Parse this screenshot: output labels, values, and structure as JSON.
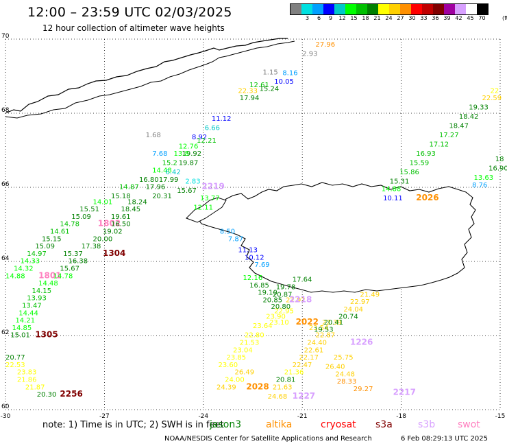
{
  "header": {
    "title": "12:00 – 23:59 UTC 02/03/2025",
    "subtitle": "12 hour collection of altimeter wave heights"
  },
  "legend": {
    "unit": "(ft)",
    "items": [
      {
        "label": "",
        "color": "#808080"
      },
      {
        "label": "3",
        "color": "#00e0e0"
      },
      {
        "label": "6",
        "color": "#00a0ff"
      },
      {
        "label": "9",
        "color": "#0000ff"
      },
      {
        "label": "12",
        "color": "#00c8c8"
      },
      {
        "label": "15",
        "color": "#00ff00"
      },
      {
        "label": "18",
        "color": "#00c000"
      },
      {
        "label": "21",
        "color": "#008000"
      },
      {
        "label": "24",
        "color": "#ffff00"
      },
      {
        "label": "27",
        "color": "#ffd000"
      },
      {
        "label": "30",
        "color": "#ff9000"
      },
      {
        "label": "33",
        "color": "#ff0000"
      },
      {
        "label": "36",
        "color": "#c00000"
      },
      {
        "label": "39",
        "color": "#800000"
      },
      {
        "label": "42",
        "color": "#a000a0"
      },
      {
        "label": "45",
        "color": "#d8a0ff"
      },
      {
        "label": "70",
        "color": "#ffffff"
      },
      {
        "label": "",
        "color": "#000000"
      }
    ]
  },
  "map": {
    "lon_ticks": [
      "-30",
      "-27",
      "-24",
      "-21",
      "-18",
      "-15"
    ],
    "lat_ticks": [
      "70",
      "68",
      "66",
      "64",
      "62",
      "60"
    ],
    "obs": [
      {
        "t": "27.96",
        "c": "#ff9000",
        "lon": -20.6,
        "lat": 69.8
      },
      {
        "t": "2.93",
        "c": "#808080",
        "lon": -21.0,
        "lat": 69.55
      },
      {
        "t": "1.15",
        "c": "#808080",
        "lon": -22.2,
        "lat": 69.05
      },
      {
        "t": "8.16",
        "c": "#00a0ff",
        "lon": -21.6,
        "lat": 69.03
      },
      {
        "t": "10.05",
        "c": "#0000ff",
        "lon": -21.85,
        "lat": 68.8
      },
      {
        "t": "12.61",
        "c": "#00c000",
        "lon": -22.6,
        "lat": 68.7
      },
      {
        "t": "15.24",
        "c": "#008000",
        "lon": -22.3,
        "lat": 68.6
      },
      {
        "t": "22.33",
        "c": "#ffd000",
        "lon": -22.95,
        "lat": 68.55
      },
      {
        "t": "17.94",
        "c": "#008000",
        "lon": -22.9,
        "lat": 68.35
      },
      {
        "t": "11.12",
        "c": "#0000ff",
        "lon": -23.75,
        "lat": 67.8
      },
      {
        "t": "6.66",
        "c": "#00c8c8",
        "lon": -23.96,
        "lat": 67.55
      },
      {
        "t": "1.68",
        "c": "#808080",
        "lon": -25.75,
        "lat": 67.35
      },
      {
        "t": "8.92",
        "c": "#0000ff",
        "lon": -24.35,
        "lat": 67.3
      },
      {
        "t": "12.21",
        "c": "#00c000",
        "lon": -24.2,
        "lat": 67.2
      },
      {
        "t": "12.76",
        "c": "#00ff00",
        "lon": -24.75,
        "lat": 67.05
      },
      {
        "t": "19.92",
        "c": "#008000",
        "lon": -24.65,
        "lat": 66.85
      },
      {
        "t": "7.68",
        "c": "#00a0ff",
        "lon": -25.55,
        "lat": 66.85
      },
      {
        "t": "13.8",
        "c": "#00ff00",
        "lon": -24.9,
        "lat": 66.85
      },
      {
        "t": "15.2",
        "c": "#00c000",
        "lon": -25.25,
        "lat": 66.6
      },
      {
        "t": "19.87",
        "c": "#008000",
        "lon": -24.75,
        "lat": 66.6
      },
      {
        "t": "14.48",
        "c": "#00ff00",
        "lon": -25.55,
        "lat": 66.4
      },
      {
        "t": "6.42",
        "c": "#00c8c8",
        "lon": -25.15,
        "lat": 66.35
      },
      {
        "t": "16.80",
        "c": "#008000",
        "lon": -25.95,
        "lat": 66.15
      },
      {
        "t": "17.99",
        "c": "#008000",
        "lon": -25.35,
        "lat": 66.15
      },
      {
        "t": "2.83",
        "c": "#00e0e0",
        "lon": -24.55,
        "lat": 66.1
      },
      {
        "t": "14.87",
        "c": "#00c000",
        "lon": -26.55,
        "lat": 65.95
      },
      {
        "t": "17.96",
        "c": "#008000",
        "lon": -25.75,
        "lat": 65.95
      },
      {
        "t": "15.18",
        "c": "#008000",
        "lon": -26.8,
        "lat": 65.7
      },
      {
        "t": "20.31",
        "c": "#008000",
        "lon": -25.55,
        "lat": 65.7
      },
      {
        "t": "15.67",
        "c": "#008000",
        "lon": -24.8,
        "lat": 65.85
      },
      {
        "t": "2219",
        "c": "#d8a0ff",
        "lon": -24.05,
        "lat": 65.95
      },
      {
        "t": "13.77",
        "c": "#00ff00",
        "lon": -24.1,
        "lat": 65.65
      },
      {
        "t": "14.01",
        "c": "#00ff00",
        "lon": -27.35,
        "lat": 65.55
      },
      {
        "t": "18.24",
        "c": "#008000",
        "lon": -26.3,
        "lat": 65.55
      },
      {
        "t": "12.11",
        "c": "#00ff00",
        "lon": -24.3,
        "lat": 65.4
      },
      {
        "t": "15.51",
        "c": "#008000",
        "lon": -27.75,
        "lat": 65.35
      },
      {
        "t": "18.45",
        "c": "#008000",
        "lon": -26.5,
        "lat": 65.35
      },
      {
        "t": "15.09",
        "c": "#008000",
        "lon": -28.0,
        "lat": 65.15
      },
      {
        "t": "19.61",
        "c": "#008000",
        "lon": -26.8,
        "lat": 65.15
      },
      {
        "t": "14.78",
        "c": "#00c000",
        "lon": -28.35,
        "lat": 64.95
      },
      {
        "t": "1802",
        "c": "#ff80c0",
        "lon": -27.2,
        "lat": 64.95
      },
      {
        "t": "16.50",
        "c": "#008000",
        "lon": -26.8,
        "lat": 64.95
      },
      {
        "t": "14.61",
        "c": "#00c000",
        "lon": -28.65,
        "lat": 64.75
      },
      {
        "t": "19.02",
        "c": "#008000",
        "lon": -27.05,
        "lat": 64.75
      },
      {
        "t": "15.15",
        "c": "#008000",
        "lon": -28.9,
        "lat": 64.55
      },
      {
        "t": "20.00",
        "c": "#008000",
        "lon": -27.35,
        "lat": 64.55
      },
      {
        "t": "8.50",
        "c": "#00a0ff",
        "lon": -23.5,
        "lat": 64.75
      },
      {
        "t": "15.09",
        "c": "#008000",
        "lon": -29.1,
        "lat": 64.35
      },
      {
        "t": "17.38",
        "c": "#008000",
        "lon": -27.7,
        "lat": 64.35
      },
      {
        "t": "7.87",
        "c": "#00a0ff",
        "lon": -23.25,
        "lat": 64.55
      },
      {
        "t": "14.97",
        "c": "#00c000",
        "lon": -29.35,
        "lat": 64.15
      },
      {
        "t": "15.37",
        "c": "#008000",
        "lon": -28.25,
        "lat": 64.15
      },
      {
        "t": "1304",
        "c": "#800000",
        "lon": -27.05,
        "lat": 64.15
      },
      {
        "t": "11.13",
        "c": "#0000ff",
        "lon": -22.95,
        "lat": 64.25
      },
      {
        "t": "14.33",
        "c": "#00ff00",
        "lon": -29.55,
        "lat": 63.95
      },
      {
        "t": "16.38",
        "c": "#008000",
        "lon": -28.1,
        "lat": 63.95
      },
      {
        "t": "10.12",
        "c": "#0000ff",
        "lon": -22.75,
        "lat": 64.05
      },
      {
        "t": "14.32",
        "c": "#00ff00",
        "lon": -29.75,
        "lat": 63.75
      },
      {
        "t": "15.67",
        "c": "#008000",
        "lon": -28.35,
        "lat": 63.75
      },
      {
        "t": "7.69",
        "c": "#00a0ff",
        "lon": -22.45,
        "lat": 63.85
      },
      {
        "t": "14.88",
        "c": "#00ff00",
        "lon": -30.0,
        "lat": 63.55
      },
      {
        "t": "1801",
        "c": "#ff80c0",
        "lon": -29.0,
        "lat": 63.55
      },
      {
        "t": "14.78",
        "c": "#00ff00",
        "lon": -28.55,
        "lat": 63.55
      },
      {
        "t": "12.16",
        "c": "#00ff00",
        "lon": -22.8,
        "lat": 63.5
      },
      {
        "t": "17.64",
        "c": "#008000",
        "lon": -21.3,
        "lat": 63.45
      },
      {
        "t": "14.48",
        "c": "#00ff00",
        "lon": -29.0,
        "lat": 63.35
      },
      {
        "t": "16.85",
        "c": "#008000",
        "lon": -22.6,
        "lat": 63.3
      },
      {
        "t": "19.78",
        "c": "#008000",
        "lon": -21.8,
        "lat": 63.25
      },
      {
        "t": "14.15",
        "c": "#00c000",
        "lon": -29.2,
        "lat": 63.15
      },
      {
        "t": "19.10",
        "c": "#008000",
        "lon": -22.35,
        "lat": 63.1
      },
      {
        "t": "20.87",
        "c": "#008000",
        "lon": -21.9,
        "lat": 63.05
      },
      {
        "t": "21.49",
        "c": "#ffd000",
        "lon": -19.25,
        "lat": 63.05
      },
      {
        "t": "13.93",
        "c": "#00c000",
        "lon": -29.35,
        "lat": 62.95
      },
      {
        "t": "20.85",
        "c": "#008000",
        "lon": -22.2,
        "lat": 62.9
      },
      {
        "t": "22.92",
        "c": "#ffd000",
        "lon": -21.5,
        "lat": 62.9
      },
      {
        "t": "2218",
        "c": "#d8a0ff",
        "lon": -21.4,
        "lat": 62.9
      },
      {
        "t": "22.97",
        "c": "#ffd000",
        "lon": -19.55,
        "lat": 62.85
      },
      {
        "t": "13.47",
        "c": "#00c000",
        "lon": -29.5,
        "lat": 62.75
      },
      {
        "t": "20.80",
        "c": "#008000",
        "lon": -21.95,
        "lat": 62.72
      },
      {
        "t": "24.04",
        "c": "#ffd000",
        "lon": -19.75,
        "lat": 62.65
      },
      {
        "t": "22.95",
        "c": "#ffff00",
        "lon": -21.85,
        "lat": 62.6
      },
      {
        "t": "14.44",
        "c": "#00ff00",
        "lon": -29.6,
        "lat": 62.55
      },
      {
        "t": "23.90",
        "c": "#ffff00",
        "lon": -22.1,
        "lat": 62.45
      },
      {
        "t": "20.74",
        "c": "#008000",
        "lon": -19.9,
        "lat": 62.45
      },
      {
        "t": "14.21",
        "c": "#00ff00",
        "lon": -29.7,
        "lat": 62.35
      },
      {
        "t": "23.10",
        "c": "#ffff00",
        "lon": -22.0,
        "lat": 62.3
      },
      {
        "t": "2022",
        "c": "#ff9000",
        "lon": -21.2,
        "lat": 62.3
      },
      {
        "t": "22.39",
        "c": "#ffd000",
        "lon": -20.4,
        "lat": 62.3
      },
      {
        "t": "20.41",
        "c": "#008000",
        "lon": -20.35,
        "lat": 62.3
      },
      {
        "t": "14.85",
        "c": "#00ff00",
        "lon": -29.8,
        "lat": 62.15
      },
      {
        "t": "23.64",
        "c": "#ffff00",
        "lon": -22.5,
        "lat": 62.2
      },
      {
        "t": "23.54",
        "c": "#ffd000",
        "lon": -20.8,
        "lat": 62.15
      },
      {
        "t": "19.53",
        "c": "#008000",
        "lon": -20.65,
        "lat": 62.1
      },
      {
        "t": "15.01",
        "c": "#008000",
        "lon": -29.85,
        "lat": 61.95
      },
      {
        "t": "1305",
        "c": "#800000",
        "lon": -29.1,
        "lat": 61.95
      },
      {
        "t": "22.80",
        "c": "#ffff00",
        "lon": -22.75,
        "lat": 61.95
      },
      {
        "t": "22.87",
        "c": "#ffd000",
        "lon": -20.6,
        "lat": 61.95
      },
      {
        "t": "21.53",
        "c": "#ffff00",
        "lon": -22.9,
        "lat": 61.75
      },
      {
        "t": "24.40",
        "c": "#ffd000",
        "lon": -20.85,
        "lat": 61.75
      },
      {
        "t": "1226",
        "c": "#d8a0ff",
        "lon": -19.55,
        "lat": 61.75
      },
      {
        "t": "23.04",
        "c": "#ffff00",
        "lon": -23.1,
        "lat": 61.55
      },
      {
        "t": "22.61",
        "c": "#ffd000",
        "lon": -20.95,
        "lat": 61.55
      },
      {
        "t": "20.77",
        "c": "#008000",
        "lon": -30.0,
        "lat": 61.35
      },
      {
        "t": "23.85",
        "c": "#ffff00",
        "lon": -23.3,
        "lat": 61.35
      },
      {
        "t": "22.17",
        "c": "#ffd000",
        "lon": -21.1,
        "lat": 61.35
      },
      {
        "t": "25.75",
        "c": "#ffd000",
        "lon": -20.05,
        "lat": 61.35
      },
      {
        "t": "22.53",
        "c": "#ffff00",
        "lon": -30.0,
        "lat": 61.15
      },
      {
        "t": "23.60",
        "c": "#ffff00",
        "lon": -23.55,
        "lat": 61.15
      },
      {
        "t": "22.47",
        "c": "#ffd000",
        "lon": -21.3,
        "lat": 61.15
      },
      {
        "t": "26.40",
        "c": "#ffd000",
        "lon": -20.3,
        "lat": 61.1
      },
      {
        "t": "23.83",
        "c": "#ffff00",
        "lon": -29.65,
        "lat": 60.95
      },
      {
        "t": "26.49",
        "c": "#ffd000",
        "lon": -23.05,
        "lat": 60.95
      },
      {
        "t": "21.36",
        "c": "#ffff00",
        "lon": -21.55,
        "lat": 60.95
      },
      {
        "t": "24.48",
        "c": "#ffd000",
        "lon": -20.0,
        "lat": 60.9
      },
      {
        "t": "21.86",
        "c": "#ffff00",
        "lon": -29.65,
        "lat": 60.75
      },
      {
        "t": "24.00",
        "c": "#ffff00",
        "lon": -23.35,
        "lat": 60.75
      },
      {
        "t": "20.81",
        "c": "#008000",
        "lon": -21.8,
        "lat": 60.75
      },
      {
        "t": "28.33",
        "c": "#ff9000",
        "lon": -19.95,
        "lat": 60.7
      },
      {
        "t": "21.87",
        "c": "#ffff00",
        "lon": -29.4,
        "lat": 60.55
      },
      {
        "t": "24.39",
        "c": "#ffd000",
        "lon": -23.6,
        "lat": 60.55
      },
      {
        "t": "2028",
        "c": "#ff9000",
        "lon": -22.7,
        "lat": 60.55
      },
      {
        "t": "21.63",
        "c": "#ffd000",
        "lon": -21.9,
        "lat": 60.55
      },
      {
        "t": "29.27",
        "c": "#ff9000",
        "lon": -19.45,
        "lat": 60.5
      },
      {
        "t": "20.30",
        "c": "#008000",
        "lon": -29.05,
        "lat": 60.35
      },
      {
        "t": "2256",
        "c": "#800000",
        "lon": -28.35,
        "lat": 60.35
      },
      {
        "t": "24.68",
        "c": "#ffd000",
        "lon": -22.05,
        "lat": 60.3
      },
      {
        "t": "1227",
        "c": "#d8a0ff",
        "lon": -21.3,
        "lat": 60.3
      },
      {
        "t": "2217",
        "c": "#d8a0ff",
        "lon": -18.25,
        "lat": 60.4
      },
      {
        "t": "22",
        "c": "#ffff00",
        "lon": -15.3,
        "lat": 68.55
      },
      {
        "t": "22.59",
        "c": "#ffd000",
        "lon": -15.55,
        "lat": 68.35
      },
      {
        "t": "19.33",
        "c": "#008000",
        "lon": -15.95,
        "lat": 68.1
      },
      {
        "t": "18.42",
        "c": "#008000",
        "lon": -16.25,
        "lat": 67.85
      },
      {
        "t": "18.47",
        "c": "#008000",
        "lon": -16.55,
        "lat": 67.6
      },
      {
        "t": "17.27",
        "c": "#00c000",
        "lon": -16.85,
        "lat": 67.35
      },
      {
        "t": "17.12",
        "c": "#00c000",
        "lon": -17.15,
        "lat": 67.1
      },
      {
        "t": "16.93",
        "c": "#00c000",
        "lon": -17.55,
        "lat": 66.85
      },
      {
        "t": "18",
        "c": "#008000",
        "lon": -15.15,
        "lat": 66.7
      },
      {
        "t": "15.59",
        "c": "#00c000",
        "lon": -17.75,
        "lat": 66.6
      },
      {
        "t": "16.90",
        "c": "#008000",
        "lon": -15.35,
        "lat": 66.45
      },
      {
        "t": "15.86",
        "c": "#00c000",
        "lon": -18.05,
        "lat": 66.35
      },
      {
        "t": "13.63",
        "c": "#00ff00",
        "lon": -15.8,
        "lat": 66.2
      },
      {
        "t": "15.31",
        "c": "#008000",
        "lon": -18.35,
        "lat": 66.1
      },
      {
        "t": "8.76",
        "c": "#00a0ff",
        "lon": -15.85,
        "lat": 66.0
      },
      {
        "t": "14.88",
        "c": "#00ff00",
        "lon": -18.6,
        "lat": 65.9
      },
      {
        "t": "10.11",
        "c": "#0000ff",
        "lon": -18.55,
        "lat": 65.65
      },
      {
        "t": "2026",
        "c": "#ff9000",
        "lon": -17.55,
        "lat": 65.65
      }
    ]
  },
  "note": "note: 1) Time is in UTC; 2) SWH is in feet",
  "satellites": [
    {
      "name": "jason3",
      "color": "#008000"
    },
    {
      "name": "altika",
      "color": "#ff9000"
    },
    {
      "name": "cryosat",
      "color": "#ff0000"
    },
    {
      "name": "s3a",
      "color": "#800000"
    },
    {
      "name": "s3b",
      "color": "#d8a0ff"
    },
    {
      "name": "swot",
      "color": "#ff80c0"
    }
  ],
  "footer": {
    "credit": "NOAA/NESDIS Center for Satellite Applications and Research",
    "timestamp": "6 Feb 08:29:13 UTC 2025"
  }
}
